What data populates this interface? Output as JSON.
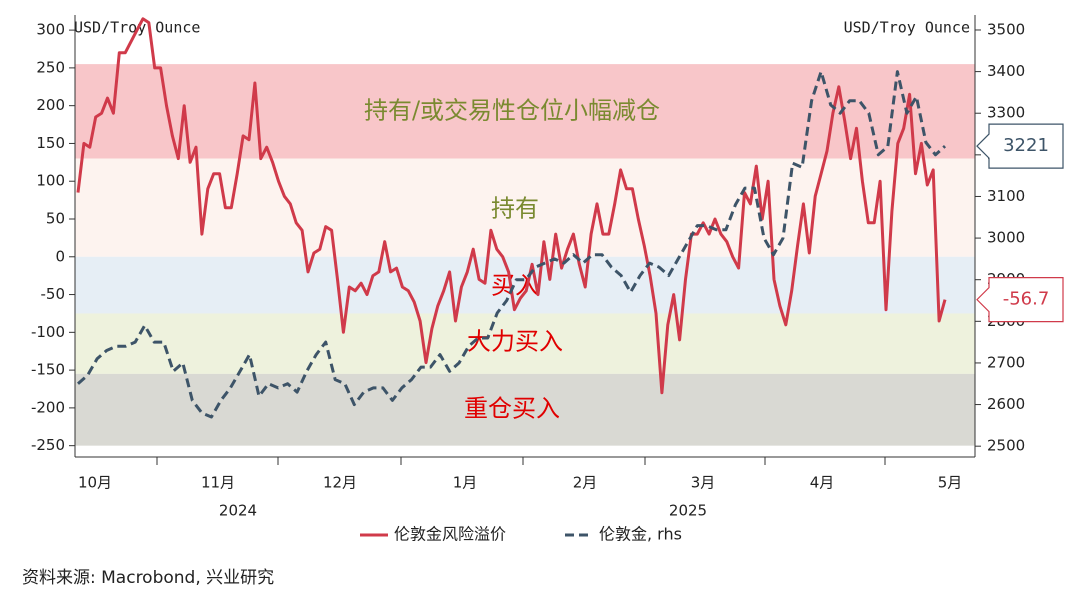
{
  "chart_data": {
    "type": "line",
    "y_label": "USD/Troy Ounce",
    "y2_label": "USD/Troy Ounce",
    "x_labels": [
      "10月",
      "11月",
      "12月",
      "1月",
      "2月",
      "3月",
      "4月",
      "5月"
    ],
    "year_labels": [
      "2024",
      "2025"
    ],
    "ylim": [
      -265,
      320
    ],
    "yticks": [
      -250,
      -200,
      -150,
      -100,
      -50,
      0,
      50,
      100,
      150,
      200,
      250,
      300
    ],
    "y2lim": [
      2474,
      3536
    ],
    "y2ticks": [
      2500,
      2600,
      2700,
      2800,
      2900,
      3000,
      3100,
      3200,
      3300,
      3400,
      3500
    ],
    "bands": [
      {
        "label": "持有/或交易性仓位小幅减仓",
        "from": 130,
        "to": 255,
        "color": "#f8c6c9",
        "text_color": "#7a8a30"
      },
      {
        "label": "持有",
        "from": 0,
        "to": 130,
        "color": "#fdf3ef",
        "text_color": "#7a8a30"
      },
      {
        "label": "买入",
        "from": -75,
        "to": 0,
        "color": "#e6eef5",
        "text_color": "#e00000"
      },
      {
        "label": "大力买入",
        "from": -155,
        "to": -75,
        "color": "#eef2dd",
        "text_color": "#e00000"
      },
      {
        "label": "重仓买入",
        "from": -250,
        "to": -155,
        "color": "#d9d9d3",
        "text_color": "#e00000"
      }
    ],
    "series": [
      {
        "name": "伦敦金风险溢价",
        "color": "#d03a4a",
        "dash": false,
        "callout": "-56.7",
        "values": [
          85,
          150,
          145,
          185,
          190,
          210,
          190,
          270,
          270,
          285,
          300,
          315,
          310,
          250,
          250,
          200,
          160,
          130,
          200,
          125,
          145,
          30,
          90,
          110,
          110,
          65,
          65,
          110,
          160,
          155,
          230,
          130,
          145,
          125,
          100,
          80,
          70,
          45,
          35,
          -20,
          5,
          10,
          40,
          35,
          -30,
          -100,
          -40,
          -45,
          -35,
          -50,
          -25,
          -20,
          20,
          -20,
          -15,
          -40,
          -45,
          -60,
          -85,
          -140,
          -95,
          -65,
          -45,
          -20,
          -85,
          -40,
          -20,
          10,
          -30,
          -35,
          35,
          10,
          0,
          -20,
          -70,
          -55,
          -45,
          -10,
          -50,
          20,
          -30,
          30,
          -15,
          10,
          30,
          -10,
          -40,
          30,
          70,
          30,
          30,
          70,
          115,
          90,
          90,
          50,
          15,
          -25,
          -75,
          -180,
          -90,
          -50,
          -110,
          -30,
          30,
          30,
          45,
          30,
          50,
          30,
          20,
          0,
          -15,
          85,
          70,
          120,
          50,
          100,
          -30,
          -65,
          -90,
          -45,
          15,
          70,
          5,
          80,
          110,
          140,
          190,
          225,
          180,
          130,
          170,
          100,
          45,
          45,
          100,
          -70,
          60,
          150,
          170,
          215,
          110,
          150,
          95,
          115,
          -85,
          -56.7
        ]
      },
      {
        "name": "伦敦金, rhs",
        "color": "#3d5468",
        "dash": true,
        "axis": "y2",
        "callout": "3221",
        "values": [
          2650,
          2670,
          2710,
          2730,
          2740,
          2740,
          2750,
          2790,
          2750,
          2750,
          2680,
          2700,
          2610,
          2580,
          2570,
          2610,
          2640,
          2680,
          2720,
          2620,
          2650,
          2640,
          2650,
          2630,
          2680,
          2720,
          2750,
          2660,
          2650,
          2600,
          2630,
          2640,
          2640,
          2610,
          2640,
          2660,
          2690,
          2690,
          2720,
          2680,
          2700,
          2740,
          2760,
          2760,
          2820,
          2850,
          2900,
          2900,
          2930,
          2940,
          2950,
          2940,
          2960,
          2940,
          2960,
          2960,
          2930,
          2910,
          2870,
          2910,
          2940,
          2930,
          2910,
          2950,
          2990,
          3030,
          3030,
          3020,
          3020,
          3080,
          3120,
          3120,
          3000,
          2960,
          3000,
          3180,
          3170,
          3330,
          3400,
          3320,
          3300,
          3330,
          3330,
          3300,
          3200,
          3220,
          3400,
          3300,
          3340,
          3230,
          3200,
          3221
        ]
      }
    ],
    "source": "资料来源: Macrobond, 兴业研究"
  }
}
